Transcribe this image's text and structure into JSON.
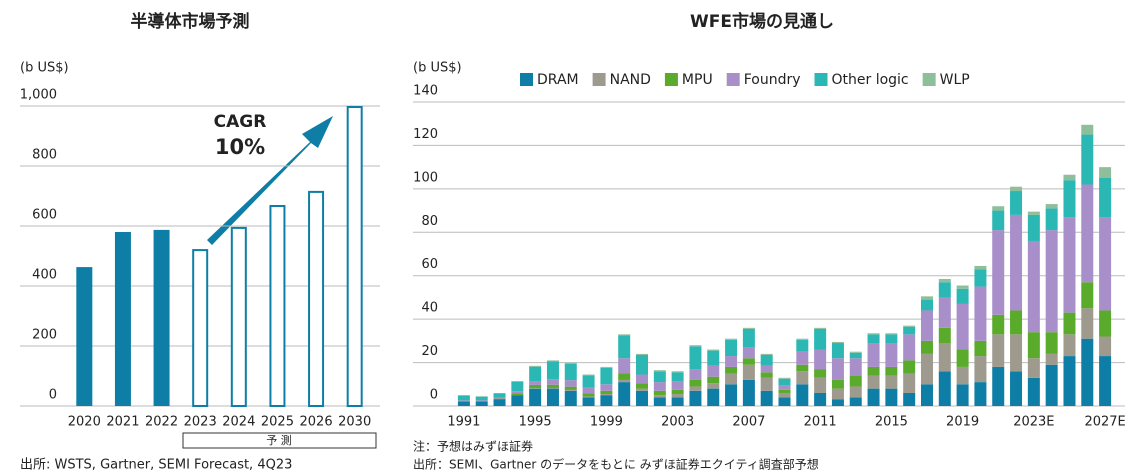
{
  "chart_data": [
    {
      "type": "bar",
      "title": "半導体市場予測",
      "ylabel": "(b US$)",
      "categories": [
        "2020",
        "2021",
        "2022",
        "2023",
        "2024",
        "2025",
        "2026",
        "2030"
      ],
      "values": [
        463,
        580,
        587,
        523,
        597,
        670,
        717,
        1000
      ],
      "forecast": [
        false,
        false,
        false,
        true,
        true,
        true,
        true,
        true
      ],
      "forecast_label": "予 測",
      "color": "#0e7ea6",
      "ylim": [
        0,
        1000
      ],
      "yticks": [
        0,
        200,
        400,
        600,
        800,
        {
          "value": 1000,
          "label": "1,000"
        }
      ],
      "grid": true,
      "annotations": [
        "CAGR",
        "10%"
      ],
      "notes": [
        "出所: WSTS, Gartner, SEMI Forecast, 4Q23"
      ]
    },
    {
      "type": "stacked_bar",
      "title": "WFE市場の見通し",
      "ylabel": "(b US$)",
      "categories": [
        "1991",
        null,
        null,
        null,
        "1995",
        null,
        null,
        null,
        "1999",
        null,
        null,
        null,
        "2003",
        null,
        null,
        null,
        "2007",
        null,
        null,
        null,
        "2011",
        null,
        null,
        null,
        "2015",
        null,
        null,
        null,
        "2019",
        null,
        null,
        null,
        "2023E",
        null,
        null,
        null,
        "2027E"
      ],
      "series": [
        {
          "name": "DRAM",
          "color": "#0e7ea6",
          "values": [
            2,
            2,
            3,
            5,
            8,
            8,
            7,
            4,
            5,
            11,
            7,
            4,
            4,
            7,
            8,
            10,
            12,
            7,
            4,
            10,
            6,
            3,
            4,
            8,
            8,
            6,
            10,
            16,
            10,
            11,
            18,
            16,
            13,
            19,
            23,
            31,
            23
          ]
        },
        {
          "name": "NAND",
          "color": "#9e9a8e",
          "values": [
            0,
            0,
            0,
            0,
            0.2,
            0.3,
            0.4,
            0.4,
            0.5,
            1,
            1,
            1,
            1.5,
            2,
            2.5,
            5,
            7,
            6,
            2,
            6,
            7,
            5,
            5,
            6,
            6,
            9,
            14,
            13,
            8,
            12,
            15,
            17,
            9,
            5,
            10,
            14,
            9
          ]
        },
        {
          "name": "MPU",
          "color": "#5aaa2b",
          "values": [
            0.3,
            0.3,
            0.4,
            0.8,
            1.5,
            1.5,
            1.5,
            1.5,
            1.5,
            3,
            2.5,
            2,
            2,
            3,
            3,
            3,
            3,
            2.5,
            1.5,
            3,
            4,
            4,
            5,
            4,
            4,
            6,
            6,
            7,
            8,
            7,
            9,
            11,
            12,
            10,
            10,
            12,
            12
          ]
        },
        {
          "name": "Foundry",
          "color": "#a88fc9",
          "values": [
            0.3,
            0.3,
            0.4,
            1,
            1.8,
            2.5,
            3,
            2.5,
            3,
            7,
            4,
            4,
            4,
            5,
            5,
            5,
            5,
            3,
            2,
            6,
            9,
            10,
            8,
            11,
            11,
            12,
            14,
            14,
            21,
            25,
            39,
            44,
            42,
            47,
            44,
            45,
            43
          ]
        },
        {
          "name": "Other logic",
          "color": "#2bb7b4",
          "values": [
            2.2,
            1.7,
            2,
            4.4,
            6.6,
            8.2,
            7.6,
            5.7,
            7.6,
            10.5,
            9,
            5,
            4,
            10.5,
            7,
            7.5,
            8.5,
            5,
            3,
            5.5,
            9.5,
            7,
            2.5,
            4,
            4,
            3.5,
            5,
            7,
            7,
            8,
            9,
            11,
            12,
            10,
            17,
            23,
            18
          ]
        },
        {
          "name": "WLP",
          "color": "#8fbf9a",
          "values": [
            0.2,
            0.2,
            0.2,
            0.3,
            0.4,
            0.5,
            0.5,
            0.4,
            0.4,
            0.5,
            0.5,
            0.5,
            0.5,
            0.5,
            0.5,
            0.5,
            0.5,
            0.5,
            0.5,
            0.5,
            0.5,
            0.5,
            0.5,
            0.5,
            0.5,
            0.5,
            1.5,
            1.5,
            1.5,
            1.5,
            2,
            2,
            1.5,
            2,
            2.5,
            4.5,
            5
          ]
        }
      ],
      "ylim": [
        0,
        140
      ],
      "yticks": [
        0,
        20,
        40,
        60,
        80,
        100,
        120,
        140
      ],
      "grid": true,
      "legend": "top",
      "notes": [
        "注：予想はみずほ証券",
        "出所：SEMI、Gartner のデータをもとに みずほ証券エクイティ調査部予想"
      ]
    }
  ]
}
